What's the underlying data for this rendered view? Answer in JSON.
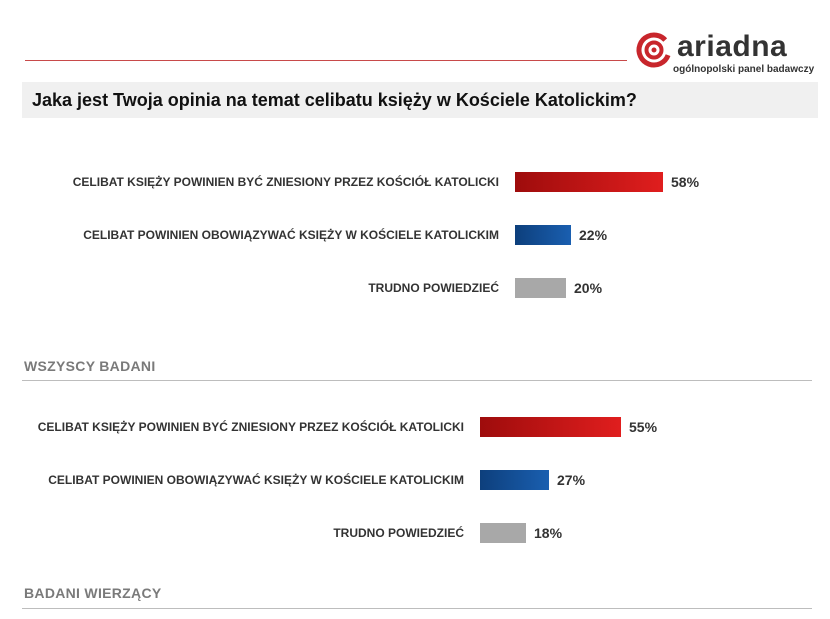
{
  "header": {
    "logo_text": "ariadna",
    "logo_subtitle": "ogólnopolski panel badawczy",
    "question": "Jaka jest Twoja opinia na temat celibatu księży w Kościele Katolickim?"
  },
  "colors": {
    "red": "#e01e1e",
    "blue": "#1a5fb0",
    "gray": "#a8a8a8",
    "accent": "#c8262c"
  },
  "chart_data": [
    {
      "type": "bar",
      "orientation": "horizontal",
      "section_title": "WSZYSCY BADANI",
      "categories": [
        "CELIBAT KSIĘŻY POWINIEN BYĆ ZNIESIONY PRZEZ KOŚCIÓŁ KATOLICKI",
        "CELIBAT POWINIEN OBOWIĄZYWAĆ KSIĘŻY W KOŚCIELE KATOLICKIM",
        "TRUDNO POWIEDZIEĆ"
      ],
      "values": [
        58,
        22,
        20
      ],
      "value_labels": [
        "58%",
        "22%",
        "20%"
      ],
      "bar_colors": [
        "red",
        "blue",
        "gray"
      ]
    },
    {
      "type": "bar",
      "orientation": "horizontal",
      "section_title": "BADANI WIERZĄCY",
      "categories": [
        "CELIBAT KSIĘŻY POWINIEN BYĆ ZNIESIONY PRZEZ KOŚCIÓŁ KATOLICKI",
        "CELIBAT POWINIEN OBOWIĄZYWAĆ KSIĘŻY W KOŚCIELE KATOLICKIM",
        "TRUDNO POWIEDZIEĆ"
      ],
      "values": [
        55,
        27,
        18
      ],
      "value_labels": [
        "55%",
        "27%",
        "18%"
      ],
      "bar_colors": [
        "red",
        "blue",
        "gray"
      ]
    }
  ]
}
